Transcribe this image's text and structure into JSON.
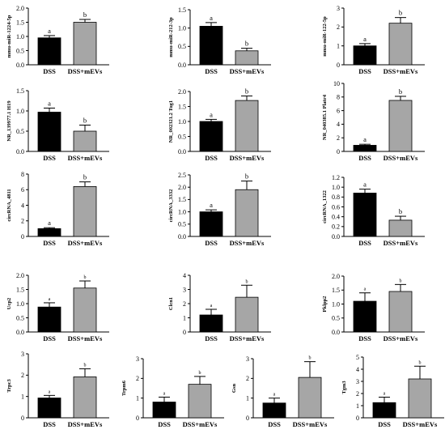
{
  "figure": {
    "colors": {
      "dss": "#000000",
      "mevs": "#a6a6a6",
      "axis": "#000000"
    }
  },
  "chart_data": [
    {
      "type": "bar",
      "ylabel": "mmu-miR-1224-5p",
      "categories": [
        "DSS",
        "DSS+mEVs"
      ],
      "values": [
        0.95,
        1.5
      ],
      "errors": [
        0.08,
        0.1
      ],
      "sig": [
        "a",
        "b"
      ],
      "ylim": [
        0,
        2.0
      ],
      "yticks": [
        "0.0",
        "0.5",
        "1.0",
        "1.5",
        "2.0"
      ]
    },
    {
      "type": "bar",
      "ylabel": "mmu-miR-212-3p",
      "categories": [
        "DSS",
        "DSS+mEVs"
      ],
      "values": [
        1.05,
        0.38
      ],
      "errors": [
        0.1,
        0.07
      ],
      "sig": [
        "a",
        "b"
      ],
      "ylim": [
        0,
        1.5
      ],
      "yticks": [
        "0.0",
        "0.5",
        "1.0",
        "1.5"
      ]
    },
    {
      "type": "bar",
      "ylabel": "mmu-miR-122-5p",
      "categories": [
        "DSS",
        "DSS+mEVs"
      ],
      "values": [
        1.0,
        2.2
      ],
      "errors": [
        0.12,
        0.3
      ],
      "sig": [
        "a",
        "b"
      ],
      "ylim": [
        0,
        3
      ],
      "yticks": [
        "0",
        "1",
        "2",
        "3"
      ]
    },
    {
      "type": "bar",
      "ylabel": "NR_139977.1 H19",
      "categories": [
        "DSS",
        "DSS+mEVs"
      ],
      "values": [
        0.97,
        0.5
      ],
      "errors": [
        0.1,
        0.15
      ],
      "sig": [
        "a",
        "b"
      ],
      "ylim": [
        0,
        1.5
      ],
      "yticks": [
        "0.0",
        "0.5",
        "1.0",
        "1.5"
      ]
    },
    {
      "type": "bar",
      "ylabel": "NR_002321.2 Tug1",
      "categories": [
        "DSS",
        "DSS+mEVs"
      ],
      "values": [
        1.0,
        1.7
      ],
      "errors": [
        0.07,
        0.15
      ],
      "sig": [
        "a",
        "b"
      ],
      "ylim": [
        0,
        2.0
      ],
      "yticks": [
        "0.0",
        "0.5",
        "1.0",
        "1.5",
        "2.0"
      ]
    },
    {
      "type": "bar",
      "ylabel": "NR_040385.1 Platr4",
      "categories": [
        "DSS",
        "DSS+mEVs"
      ],
      "values": [
        0.9,
        7.5
      ],
      "errors": [
        0.15,
        0.6
      ],
      "sig": [
        "a",
        "b"
      ],
      "ylim": [
        0,
        10
      ],
      "yticks": [
        "0",
        "2",
        "4",
        "6",
        "8",
        "10"
      ]
    },
    {
      "type": "bar",
      "ylabel": "circRNA_4811",
      "categories": [
        "DSS",
        "DSS+mEVs"
      ],
      "values": [
        1.0,
        6.4
      ],
      "errors": [
        0.12,
        0.6
      ],
      "sig": [
        "a",
        "b"
      ],
      "ylim": [
        0,
        8
      ],
      "yticks": [
        "0",
        "2",
        "4",
        "6",
        "8"
      ]
    },
    {
      "type": "bar",
      "ylabel": "circRNA_3332",
      "categories": [
        "DSS",
        "DSS+mEVs"
      ],
      "values": [
        1.0,
        1.9
      ],
      "errors": [
        0.08,
        0.35
      ],
      "sig": [
        "a",
        "b"
      ],
      "ylim": [
        0,
        2.5
      ],
      "yticks": [
        "0.0",
        "0.5",
        "1.0",
        "1.5",
        "2.0",
        "2.5"
      ]
    },
    {
      "type": "bar",
      "ylabel": "circRNA_1322",
      "categories": [
        "DSS",
        "DSS+mEVs"
      ],
      "values": [
        0.88,
        0.33
      ],
      "errors": [
        0.08,
        0.08
      ],
      "sig": [
        "a",
        "b"
      ],
      "ylim": [
        0,
        1.2
      ],
      "yticks": [
        "0.0",
        "0.2",
        "0.4",
        "0.6",
        "0.8",
        "1.0",
        "1.2"
      ]
    },
    {
      "type": "bar",
      "ylabel": "Ucp2",
      "categories": [
        "DSS",
        "DSS+mEVs"
      ],
      "values": [
        0.88,
        1.55
      ],
      "errors": [
        0.15,
        0.25
      ],
      "sig": [
        "a",
        "b"
      ],
      "ylim": [
        0,
        2.0
      ],
      "yticks": [
        "0.0",
        "0.5",
        "1.0",
        "1.5",
        "2.0"
      ]
    },
    {
      "type": "bar",
      "ylabel": "Clcn1",
      "categories": [
        "DSS",
        "DSS+mEVs"
      ],
      "values": [
        1.2,
        2.45
      ],
      "errors": [
        0.4,
        0.85
      ],
      "sig": [
        "a",
        "b"
      ],
      "ylim": [
        0,
        4
      ],
      "yticks": [
        "0",
        "1",
        "2",
        "3",
        "4"
      ]
    },
    {
      "type": "bar",
      "ylabel": "Pklpp2",
      "categories": [
        "DSS",
        "DSS+mEVs"
      ],
      "values": [
        1.1,
        1.45
      ],
      "errors": [
        0.3,
        0.25
      ],
      "sig": [
        "a",
        "b"
      ],
      "ylim": [
        0,
        2.0
      ],
      "yticks": [
        "0.0",
        "0.5",
        "1.0",
        "1.5",
        "2.0"
      ]
    },
    {
      "type": "bar",
      "ylabel": "Trpc3",
      "categories": [
        "DSS",
        "DSS+mEVs"
      ],
      "values": [
        0.93,
        1.92
      ],
      "errors": [
        0.12,
        0.38
      ],
      "sig": [
        "a",
        "b"
      ],
      "ylim": [
        0,
        3
      ],
      "yticks": [
        "0",
        "1",
        "2",
        "3"
      ]
    },
    {
      "type": "bar",
      "ylabel": "Trpm6",
      "categories": [
        "DSS",
        "DSS+mEVs"
      ],
      "values": [
        0.8,
        1.7
      ],
      "errors": [
        0.25,
        0.4
      ],
      "sig": [
        "a",
        "b"
      ],
      "ylim": [
        0,
        3
      ],
      "yticks": [
        "0",
        "1",
        "2",
        "3"
      ]
    },
    {
      "type": "bar",
      "ylabel": "Gsn",
      "categories": [
        "DSS",
        "DSS+mEVs"
      ],
      "values": [
        0.75,
        2.05
      ],
      "errors": [
        0.25,
        0.8
      ],
      "sig": [
        "a",
        "b"
      ],
      "ylim": [
        0,
        3
      ],
      "yticks": [
        "0",
        "1",
        "2",
        "3"
      ]
    },
    {
      "type": "bar",
      "ylabel": "Tgm3",
      "categories": [
        "DSS",
        "DSS+mEVs"
      ],
      "values": [
        1.25,
        3.2
      ],
      "errors": [
        0.45,
        1.05
      ],
      "sig": [
        "a",
        "b"
      ],
      "ylim": [
        0,
        5
      ],
      "yticks": [
        "0",
        "1",
        "2",
        "3",
        "4",
        "5"
      ]
    }
  ]
}
